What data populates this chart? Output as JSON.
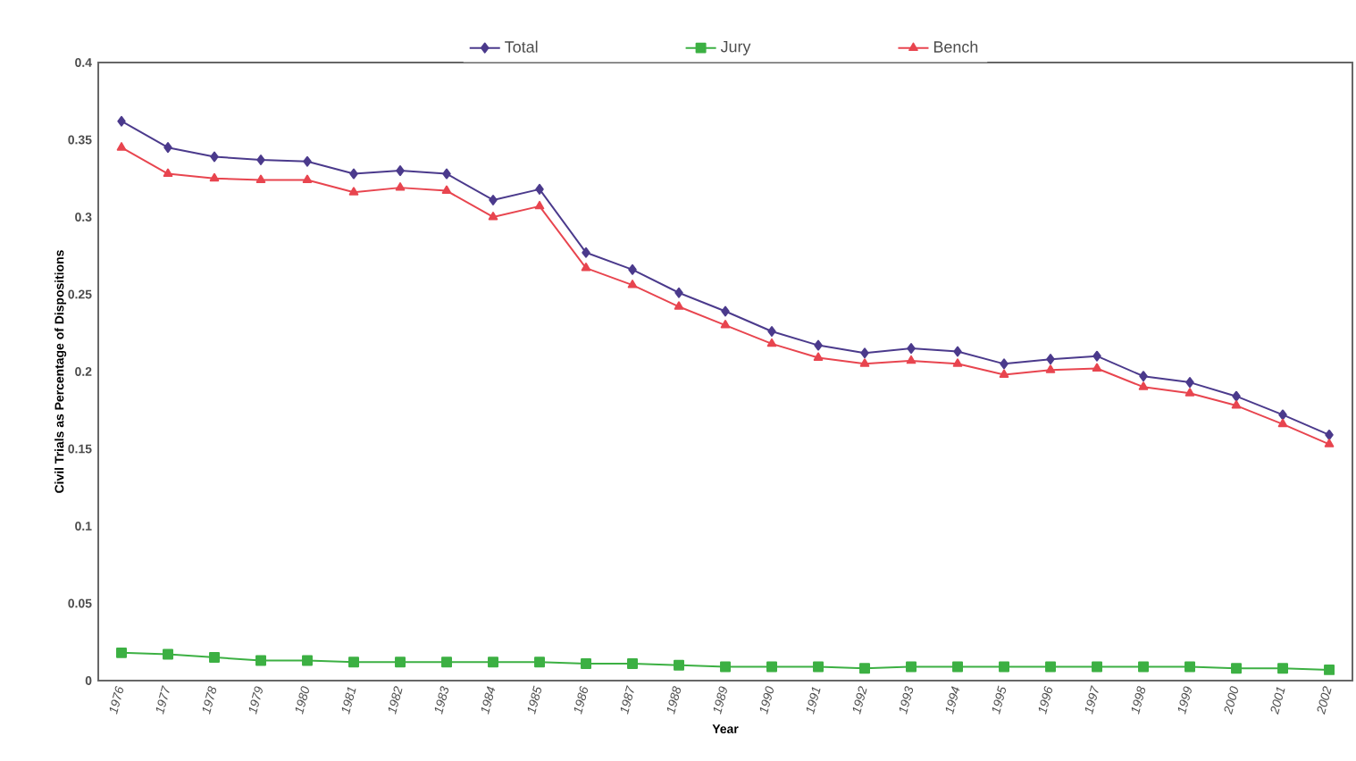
{
  "chart_data": {
    "type": "line",
    "xlabel": "Year",
    "ylabel": "Civil Trials as Percentage of Dispositions",
    "categories": [
      "1976",
      "1977",
      "1978",
      "1979",
      "1980",
      "1981",
      "1982",
      "1983",
      "1984",
      "1985",
      "1986",
      "1987",
      "1988",
      "1989",
      "1990",
      "1991",
      "1992",
      "1993",
      "1994",
      "1995",
      "1996",
      "1997",
      "1998",
      "1999",
      "2000",
      "2001",
      "2002"
    ],
    "series": [
      {
        "name": "Total",
        "color": "#4b3a8c",
        "marker": "diamond",
        "values": [
          0.362,
          0.345,
          0.339,
          0.337,
          0.336,
          0.328,
          0.33,
          0.328,
          0.311,
          0.318,
          0.277,
          0.266,
          0.251,
          0.239,
          0.226,
          0.217,
          0.212,
          0.215,
          0.213,
          0.205,
          0.208,
          0.21,
          0.197,
          0.193,
          0.184,
          0.172,
          0.159
        ]
      },
      {
        "name": "Jury",
        "color": "#3cb043",
        "marker": "square",
        "values": [
          0.018,
          0.017,
          0.015,
          0.013,
          0.013,
          0.012,
          0.012,
          0.012,
          0.012,
          0.012,
          0.011,
          0.011,
          0.01,
          0.009,
          0.009,
          0.009,
          0.008,
          0.009,
          0.009,
          0.009,
          0.009,
          0.009,
          0.009,
          0.009,
          0.008,
          0.008,
          0.007
        ]
      },
      {
        "name": "Bench",
        "color": "#e8454f",
        "marker": "triangle",
        "values": [
          0.345,
          0.328,
          0.325,
          0.324,
          0.324,
          0.316,
          0.319,
          0.317,
          0.3,
          0.307,
          0.267,
          0.256,
          0.242,
          0.23,
          0.218,
          0.209,
          0.205,
          0.207,
          0.205,
          0.198,
          0.201,
          0.202,
          0.19,
          0.186,
          0.178,
          0.166,
          0.153
        ]
      }
    ],
    "ylim": [
      0,
      0.4
    ],
    "yticks": [
      0,
      0.05,
      0.1,
      0.15,
      0.2,
      0.25,
      0.3,
      0.35,
      0.4
    ],
    "grid": false,
    "legend": "top"
  }
}
